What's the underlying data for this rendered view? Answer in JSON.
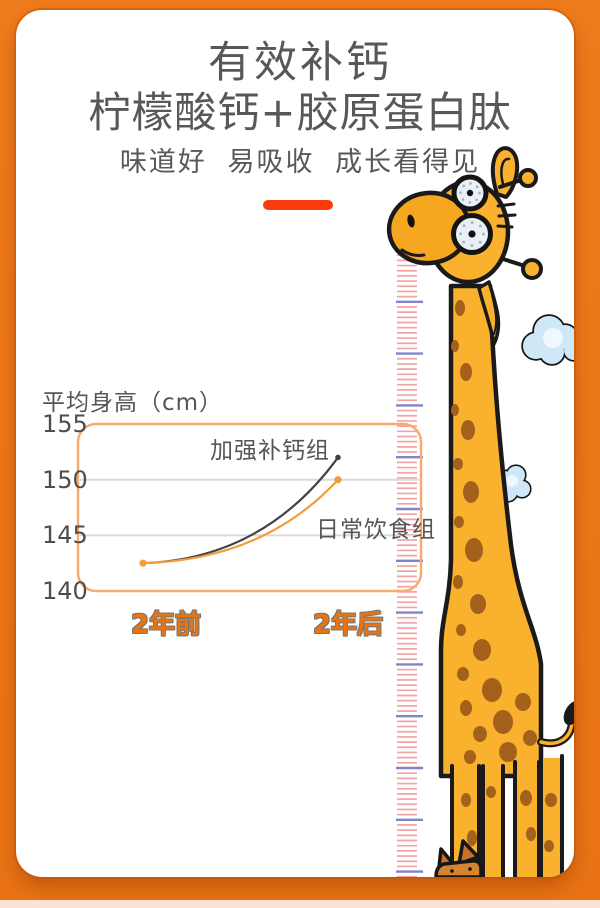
{
  "page": {
    "background_color": "#EE7B1C",
    "bottom_strip_color": "#FBE2D5",
    "card_color": "#FFFFFF"
  },
  "header": {
    "title_line1": "有效补钙",
    "title_line2": "柠檬酸钙+胶原蛋白肽",
    "subtitle": "味道好 易吸收 成长看得见",
    "accent_bar_color": "#FB3A0D"
  },
  "chart_data": {
    "type": "line",
    "title": "平均身高（cm）",
    "x": [
      "2年前",
      "2年后"
    ],
    "series": [
      {
        "name": "加强补钙组",
        "values": [
          142.5,
          152
        ],
        "color": "#424242"
      },
      {
        "name": "日常饮食组",
        "values": [
          142.5,
          150
        ],
        "color": "#F49B3C"
      }
    ],
    "ylim": [
      140,
      155
    ],
    "yticks": [
      155,
      150,
      145,
      140
    ],
    "gridline_values": [
      150,
      145
    ],
    "grid": "horizontal",
    "frame": "rounded-rect light-orange border",
    "legend_position": "inline labels near curve ends",
    "xlabel": "",
    "ylabel": "平均身高（cm）"
  },
  "illustration": {
    "description": "cartoon giraffe beside a wall height ruler with clouds",
    "giraffe_body_color": "#F9B12E",
    "giraffe_muzzle_color": "#F5A71F",
    "giraffe_spot_color": "#A4611C",
    "ruler_minor_tick_color": "#F2A3A3",
    "ruler_major_tick_color": "#7F85C6",
    "cloud_color": "#CEE8F8"
  }
}
